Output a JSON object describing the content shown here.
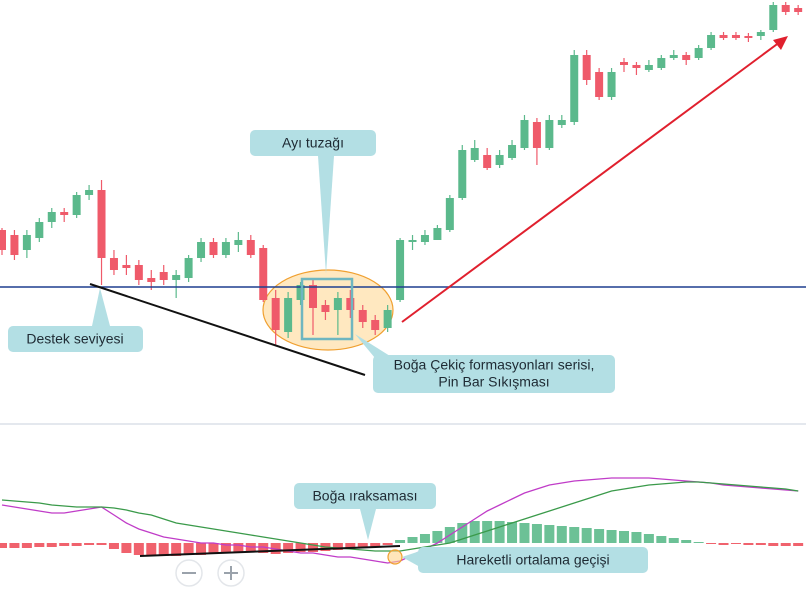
{
  "chart_data": [
    {
      "type": "candlestick",
      "ylim": [
        0,
        420
      ],
      "up_color": "#5bb98c",
      "down_color": "#ef5a6a",
      "open": [
        190,
        185,
        170,
        182,
        198,
        208,
        205,
        225,
        230,
        162,
        155,
        155,
        142,
        148,
        140,
        142,
        162,
        178,
        165,
        175,
        180,
        172,
        122,
        88,
        120,
        135,
        115,
        110,
        122,
        110,
        100,
        92,
        120,
        178,
        178,
        180,
        190,
        222,
        260,
        265,
        255,
        262,
        272,
        298,
        272,
        295,
        298,
        365,
        348,
        323,
        358,
        355,
        350,
        352,
        362,
        365,
        362,
        372,
        385,
        385,
        384,
        384,
        390,
        415,
        412
      ],
      "high": [
        192,
        190,
        190,
        202,
        212,
        212,
        228,
        235,
        240,
        170,
        165,
        160,
        150,
        155,
        150,
        165,
        182,
        182,
        182,
        188,
        185,
        175,
        130,
        128,
        138,
        140,
        120,
        128,
        130,
        115,
        105,
        115,
        182,
        185,
        190,
        195,
        225,
        275,
        280,
        272,
        270,
        280,
        305,
        302,
        305,
        305,
        370,
        370,
        352,
        352,
        362,
        358,
        360,
        365,
        370,
        368,
        375,
        388,
        388,
        388,
        387,
        390,
        418,
        418,
        415
      ],
      "low": [
        165,
        160,
        162,
        178,
        192,
        198,
        202,
        220,
        135,
        145,
        145,
        135,
        130,
        135,
        122,
        138,
        158,
        162,
        162,
        168,
        162,
        118,
        75,
        82,
        115,
        85,
        100,
        85,
        102,
        92,
        85,
        88,
        118,
        170,
        175,
        180,
        188,
        220,
        258,
        250,
        252,
        260,
        270,
        255,
        270,
        292,
        295,
        335,
        320,
        320,
        348,
        345,
        348,
        350,
        360,
        355,
        360,
        370,
        380,
        380,
        378,
        380,
        388,
        405,
        405
      ],
      "close": [
        170,
        165,
        185,
        198,
        208,
        205,
        225,
        230,
        162,
        150,
        152,
        140,
        138,
        140,
        145,
        162,
        178,
        165,
        178,
        180,
        165,
        120,
        90,
        122,
        135,
        112,
        108,
        122,
        110,
        98,
        90,
        110,
        180,
        180,
        185,
        192,
        222,
        270,
        272,
        252,
        265,
        275,
        300,
        272,
        300,
        300,
        365,
        340,
        323,
        348,
        355,
        352,
        355,
        362,
        365,
        360,
        372,
        385,
        382,
        382,
        382,
        388,
        415,
        408,
        408
      ],
      "support_level": 133,
      "annotations": {
        "bear_trap": "Ayı tuzağı",
        "support": "Destek seviyesi",
        "hammer": [
          "Boğa Çekiç formasyonları serisi,",
          "Pin Bar Sıkışması"
        ]
      }
    },
    {
      "type": "macd",
      "ylim": [
        -51,
        113
      ],
      "up_color": "#6cc196",
      "down_color": "#f0626d",
      "histogram": [
        -5,
        -5,
        -5,
        -4,
        -4,
        -3,
        -3,
        -2,
        -2,
        -6,
        -10,
        -12,
        -13,
        -13,
        -13,
        -12,
        -12,
        -11,
        -10,
        -9,
        -9,
        -10,
        -11,
        -10,
        -9,
        -9,
        -8,
        -7,
        -6,
        -5,
        -4,
        -2,
        3,
        6,
        9,
        12,
        16,
        20,
        22,
        22,
        22,
        21,
        20,
        19,
        18,
        17,
        16,
        15,
        14,
        13,
        12,
        11,
        9,
        7,
        5,
        3,
        1,
        -1,
        -2,
        -1,
        -2,
        -2,
        -3,
        -3,
        -3
      ],
      "series": [
        {
          "color": "#c03cc8",
          "values": [
            38,
            36,
            34,
            32,
            30,
            30,
            32,
            34,
            36,
            28,
            20,
            14,
            10,
            6,
            4,
            2,
            0,
            0,
            -2,
            -2,
            -4,
            -4,
            -6,
            -8,
            -10,
            -10,
            -12,
            -14,
            -14,
            -16,
            -18,
            -20,
            -18,
            -12,
            -6,
            0,
            8,
            16,
            24,
            32,
            38,
            44,
            50,
            54,
            58,
            60,
            62,
            63,
            64,
            65,
            65,
            65,
            65,
            64,
            63,
            62,
            61,
            60,
            58,
            57,
            56,
            55,
            54,
            53,
            52
          ]
        },
        {
          "color": "#3a9a4a",
          "values": [
            43,
            42,
            41,
            40,
            38,
            37,
            36,
            36,
            36,
            35,
            33,
            30,
            28,
            24,
            20,
            18,
            16,
            14,
            12,
            10,
            8,
            6,
            4,
            2,
            0,
            -2,
            -4,
            -5,
            -6,
            -7,
            -8,
            -8,
            -8,
            -6,
            -4,
            -2,
            0,
            4,
            8,
            12,
            16,
            20,
            24,
            28,
            32,
            36,
            40,
            44,
            48,
            52,
            54,
            56,
            58,
            59,
            60,
            61,
            61,
            60,
            59,
            58,
            57,
            56,
            55,
            54,
            52
          ]
        }
      ],
      "annotations": {
        "divergence": "Boğa ıraksaması",
        "crossover": "Hareketli ortalama geçişi"
      }
    }
  ]
}
